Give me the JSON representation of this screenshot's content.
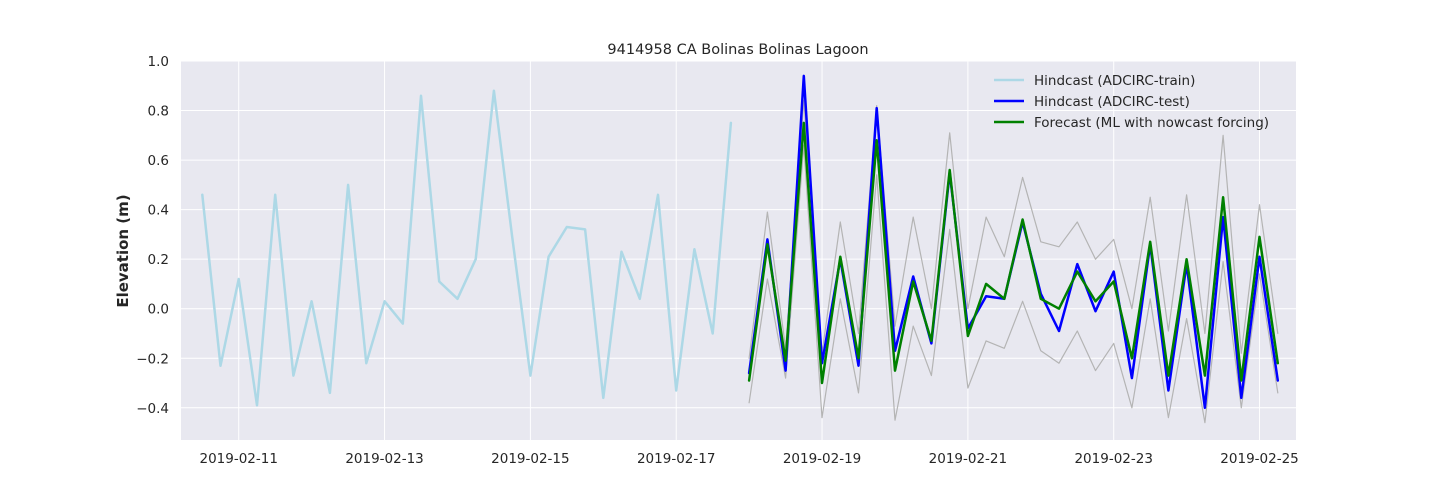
{
  "chart_data": {
    "type": "line",
    "title": "9414958 CA Bolinas Bolinas Lagoon",
    "xlabel": "",
    "ylabel": "Elevation (m)",
    "xlim": [
      "2019-02-10T05:00",
      "2019-02-25T12:00"
    ],
    "ylim": [
      -0.53,
      1.0
    ],
    "x_ticks": [
      "2019-02-11",
      "2019-02-13",
      "2019-02-15",
      "2019-02-17",
      "2019-02-19",
      "2019-02-21",
      "2019-02-23",
      "2019-02-25"
    ],
    "y_ticks": [
      "−0.4",
      "−0.2",
      "0.0",
      "0.2",
      "0.4",
      "0.6",
      "0.8",
      "1.0"
    ],
    "y_tick_values": [
      -0.4,
      -0.2,
      0.0,
      0.2,
      0.4,
      0.6,
      0.8,
      1.0
    ],
    "grid": true,
    "legend_position": "upper right",
    "background": "#e8e8f0",
    "series": [
      {
        "name": "Hindcast (ADCIRC-train)",
        "color": "#add8e6",
        "x": [
          "2019-02-10T12:00",
          "2019-02-10T18:00",
          "2019-02-11T00:00",
          "2019-02-11T06:00",
          "2019-02-11T12:00",
          "2019-02-11T18:00",
          "2019-02-12T00:00",
          "2019-02-12T06:00",
          "2019-02-12T12:00",
          "2019-02-12T18:00",
          "2019-02-13T00:00",
          "2019-02-13T06:00",
          "2019-02-13T12:00",
          "2019-02-13T18:00",
          "2019-02-14T00:00",
          "2019-02-14T06:00",
          "2019-02-14T12:00",
          "2019-02-14T18:00",
          "2019-02-15T00:00",
          "2019-02-15T06:00",
          "2019-02-15T12:00",
          "2019-02-15T18:00",
          "2019-02-16T00:00",
          "2019-02-16T06:00",
          "2019-02-16T12:00",
          "2019-02-16T18:00",
          "2019-02-17T00:00",
          "2019-02-17T06:00",
          "2019-02-17T12:00",
          "2019-02-17T18:00"
        ],
        "values": [
          0.46,
          -0.23,
          0.12,
          -0.39,
          0.46,
          -0.27,
          0.03,
          -0.34,
          0.5,
          -0.22,
          0.03,
          -0.06,
          0.86,
          0.11,
          0.04,
          0.2,
          0.88,
          0.29,
          -0.27,
          0.21,
          0.33,
          0.32,
          -0.36,
          0.23,
          0.04,
          0.46,
          -0.33,
          0.24,
          -0.1,
          0.75
        ]
      },
      {
        "name": "Hindcast (ADCIRC-test)",
        "color": "#0000ff",
        "x": [
          "2019-02-18T00:00",
          "2019-02-18T06:00",
          "2019-02-18T12:00",
          "2019-02-18T18:00",
          "2019-02-19T00:00",
          "2019-02-19T06:00",
          "2019-02-19T12:00",
          "2019-02-19T18:00",
          "2019-02-20T00:00",
          "2019-02-20T06:00",
          "2019-02-20T12:00",
          "2019-02-20T18:00",
          "2019-02-21T00:00",
          "2019-02-21T06:00",
          "2019-02-21T12:00",
          "2019-02-21T18:00",
          "2019-02-22T00:00",
          "2019-02-22T06:00",
          "2019-02-22T12:00",
          "2019-02-22T18:00",
          "2019-02-23T00:00",
          "2019-02-23T06:00",
          "2019-02-23T12:00",
          "2019-02-23T18:00",
          "2019-02-24T00:00",
          "2019-02-24T06:00",
          "2019-02-24T12:00",
          "2019-02-24T18:00",
          "2019-02-25T00:00",
          "2019-02-25T06:00"
        ],
        "values": [
          -0.26,
          0.28,
          -0.25,
          0.94,
          -0.22,
          0.2,
          -0.23,
          0.81,
          -0.17,
          0.13,
          -0.14,
          0.55,
          -0.08,
          0.05,
          0.04,
          0.35,
          0.06,
          -0.09,
          0.18,
          -0.01,
          0.15,
          -0.28,
          0.26,
          -0.33,
          0.18,
          -0.4,
          0.37,
          -0.36,
          0.21,
          -0.29
        ]
      },
      {
        "name": "Forecast (ML with nowcast forcing)",
        "color": "#008000",
        "x": [
          "2019-02-18T00:00",
          "2019-02-18T06:00",
          "2019-02-18T12:00",
          "2019-02-18T18:00",
          "2019-02-19T00:00",
          "2019-02-19T06:00",
          "2019-02-19T12:00",
          "2019-02-19T18:00",
          "2019-02-20T00:00",
          "2019-02-20T06:00",
          "2019-02-20T12:00",
          "2019-02-20T18:00",
          "2019-02-21T00:00",
          "2019-02-21T06:00",
          "2019-02-21T12:00",
          "2019-02-21T18:00",
          "2019-02-22T00:00",
          "2019-02-22T06:00",
          "2019-02-22T12:00",
          "2019-02-22T18:00",
          "2019-02-23T00:00",
          "2019-02-23T06:00",
          "2019-02-23T12:00",
          "2019-02-23T18:00",
          "2019-02-24T00:00",
          "2019-02-24T06:00",
          "2019-02-24T12:00",
          "2019-02-24T18:00",
          "2019-02-25T00:00",
          "2019-02-25T06:00"
        ],
        "values": [
          -0.29,
          0.26,
          -0.21,
          0.75,
          -0.3,
          0.21,
          -0.2,
          0.68,
          -0.25,
          0.11,
          -0.13,
          0.56,
          -0.11,
          0.1,
          0.04,
          0.36,
          0.04,
          0.0,
          0.15,
          0.03,
          0.11,
          -0.2,
          0.27,
          -0.27,
          0.2,
          -0.27,
          0.45,
          -0.29,
          0.29,
          -0.22
        ]
      },
      {
        "color": "#b4b4b4",
        "x": [
          "2019-02-18T00:00",
          "2019-02-18T06:00",
          "2019-02-18T12:00",
          "2019-02-18T18:00",
          "2019-02-19T00:00",
          "2019-02-19T06:00",
          "2019-02-19T12:00",
          "2019-02-19T18:00",
          "2019-02-20T00:00",
          "2019-02-20T06:00",
          "2019-02-20T12:00",
          "2019-02-20T18:00",
          "2019-02-21T00:00",
          "2019-02-21T06:00",
          "2019-02-21T12:00",
          "2019-02-21T18:00",
          "2019-02-22T00:00",
          "2019-02-22T06:00",
          "2019-02-22T12:00",
          "2019-02-22T18:00",
          "2019-02-23T00:00",
          "2019-02-23T06:00",
          "2019-02-23T12:00",
          "2019-02-23T18:00",
          "2019-02-24T00:00",
          "2019-02-24T06:00",
          "2019-02-24T12:00",
          "2019-02-24T18:00",
          "2019-02-25T00:00",
          "2019-02-25T06:00"
        ],
        "values": [
          -0.2,
          0.39,
          -0.16,
          0.84,
          -0.18,
          0.35,
          -0.1,
          0.82,
          -0.07,
          0.37,
          0.0,
          0.71,
          0.0,
          0.37,
          0.21,
          0.53,
          0.27,
          0.25,
          0.35,
          0.2,
          0.28,
          0.0,
          0.45,
          -0.09,
          0.46,
          -0.1,
          0.7,
          -0.18,
          0.42,
          -0.1
        ]
      },
      {
        "color": "#b4b4b4",
        "x": [
          "2019-02-18T00:00",
          "2019-02-18T06:00",
          "2019-02-18T12:00",
          "2019-02-18T18:00",
          "2019-02-19T00:00",
          "2019-02-19T06:00",
          "2019-02-19T12:00",
          "2019-02-19T18:00",
          "2019-02-20T00:00",
          "2019-02-20T06:00",
          "2019-02-20T12:00",
          "2019-02-20T18:00",
          "2019-02-21T00:00",
          "2019-02-21T06:00",
          "2019-02-21T12:00",
          "2019-02-21T18:00",
          "2019-02-22T00:00",
          "2019-02-22T06:00",
          "2019-02-22T12:00",
          "2019-02-22T18:00",
          "2019-02-23T00:00",
          "2019-02-23T06:00",
          "2019-02-23T12:00",
          "2019-02-23T18:00",
          "2019-02-24T00:00",
          "2019-02-24T06:00",
          "2019-02-24T12:00",
          "2019-02-24T18:00",
          "2019-02-25T00:00",
          "2019-02-25T06:00"
        ],
        "values": [
          -0.38,
          0.12,
          -0.28,
          0.66,
          -0.44,
          0.04,
          -0.34,
          0.54,
          -0.45,
          -0.07,
          -0.27,
          0.32,
          -0.32,
          -0.13,
          -0.16,
          0.03,
          -0.17,
          -0.22,
          -0.09,
          -0.25,
          -0.14,
          -0.4,
          0.04,
          -0.44,
          -0.04,
          -0.46,
          0.19,
          -0.4,
          0.14,
          -0.34
        ]
      }
    ]
  }
}
